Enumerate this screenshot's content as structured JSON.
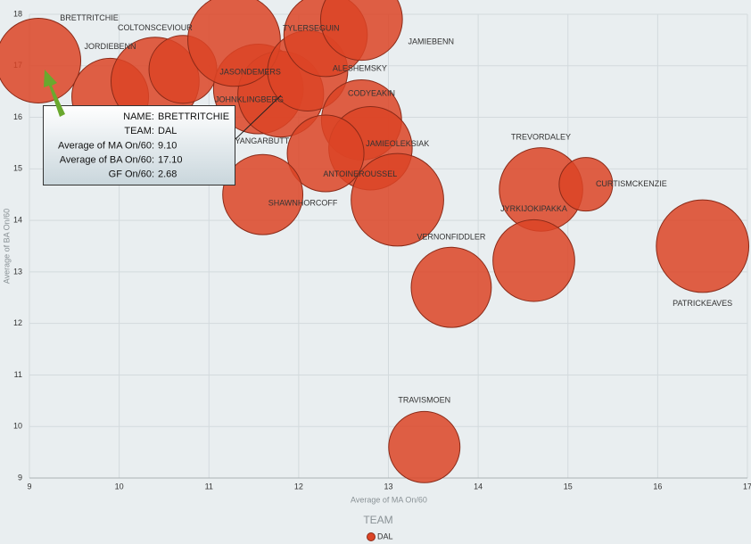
{
  "chart_data": {
    "type": "bubble",
    "x_label": "Average of MA On/60",
    "y_label": "Average of BA On/60",
    "xlim": [
      9,
      17
    ],
    "xticks": [
      9,
      10,
      11,
      12,
      13,
      14,
      15,
      16,
      17
    ],
    "ylim": [
      9,
      18
    ],
    "yticks": [
      9,
      10,
      11,
      12,
      13,
      14,
      15,
      16,
      17,
      18
    ],
    "grid": true,
    "legend_title": "TEAM",
    "series": [
      {
        "name": "DAL",
        "color": "#dc4426",
        "labels": [
          "BRETTRITCHIE",
          "JORDIEBENN",
          "COLTONSCEVIOUR",
          null,
          "JOHNKLINGBERG",
          "RYANGARBUTT",
          "JASONDEMERS",
          "ALESHEMSKY",
          "TYLERSEGUIN",
          "JAMIEBENN",
          "CODYEAKIN",
          "JAMIEOLEKSIAK",
          "ANTOINEROUSSEL",
          null,
          "SHAWNHORCOFF",
          "TREVORDALEY",
          "CURTISMCKENZIE",
          "JYRKIJOKIPAKKA",
          "VERNONFIDDLER",
          "PATRICKEAVES",
          "TRAVISMOEN"
        ],
        "x": [
          9.1,
          9.9,
          10.4,
          10.71,
          11.55,
          11.8,
          11.28,
          12.1,
          12.3,
          12.7,
          12.7,
          12.8,
          12.3,
          13.1,
          11.6,
          14.7,
          15.2,
          14.62,
          13.7,
          16.5,
          13.4
        ],
        "values": [
          17.1,
          16.4,
          16.7,
          16.93,
          16.55,
          16.45,
          17.5,
          16.9,
          17.6,
          17.9,
          15.95,
          15.4,
          15.3,
          14.4,
          14.5,
          14.6,
          14.7,
          13.22,
          12.7,
          13.5,
          9.6
        ],
        "sizes": [
          2.68,
          2.2,
          2.9,
          1.72,
          3.0,
          2.75,
          3.2,
          2.4,
          2.6,
          2.5,
          2.4,
          2.6,
          2.2,
          3.2,
          2.4,
          2.6,
          1.07,
          2.5,
          2.4,
          3.2,
          1.9
        ]
      }
    ],
    "tooltip": [
      [
        "NAME:",
        "BRETTRITCHIE"
      ],
      [
        "TEAM:",
        "DAL"
      ],
      [
        "Average of MA On/60:",
        "9.10"
      ],
      [
        "Average of BA On/60:",
        "17.10"
      ],
      [
        "GF On/60:",
        "2.68"
      ]
    ]
  }
}
